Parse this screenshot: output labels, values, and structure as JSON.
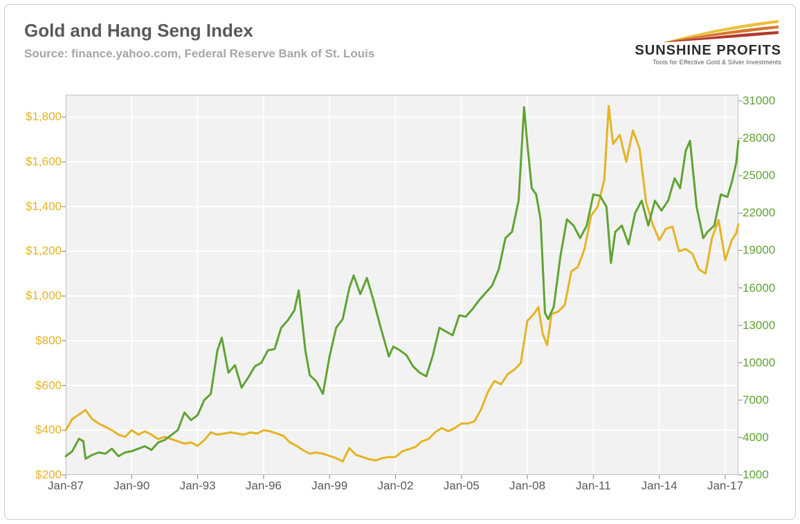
{
  "header": {
    "title": "Gold and Hang Seng Index",
    "subtitle": "Source: finance.yahoo.com, Federal Reserve Bank of St. Louis"
  },
  "logo": {
    "name": "SUNSHINE PROFITS",
    "tagline": "Tools for Effective Gold & Silver Investments",
    "swoosh_colors": [
      "#e8c23a",
      "#d7762c",
      "#b03a2e"
    ]
  },
  "chart": {
    "type": "line",
    "background_color": "#f2f2f2",
    "grid_color": "#ffffff",
    "border_color": "#bfbfbf",
    "x": {
      "start": 1987.0,
      "end": 2017.6,
      "ticks": [
        1987,
        1990,
        1993,
        1996,
        1999,
        2002,
        2005,
        2008,
        2011,
        2014,
        2017
      ],
      "tick_labels": [
        "Jan-87",
        "Jan-90",
        "Jan-93",
        "Jan-96",
        "Jan-99",
        "Jan-02",
        "Jan-05",
        "Jan-08",
        "Jan-11",
        "Jan-14",
        "Jan-17"
      ],
      "label_color": "#595959",
      "fontsize": 17
    },
    "y_left": {
      "min": 200,
      "max": 1900,
      "ticks": [
        200,
        400,
        600,
        800,
        1000,
        1200,
        1400,
        1600,
        1800
      ],
      "tick_labels": [
        "$200",
        "$400",
        "$600",
        "$800",
        "$1,000",
        "$1,200",
        "$1,400",
        "$1,600",
        "$1,800"
      ],
      "color": "#e6b323",
      "fontsize": 17
    },
    "y_right": {
      "min": 1000,
      "max": 31500,
      "ticks": [
        1000,
        4000,
        7000,
        10000,
        13000,
        16000,
        19000,
        22000,
        25000,
        28000,
        31000
      ],
      "tick_labels": [
        "1000",
        "4000",
        "7000",
        "10000",
        "13000",
        "16000",
        "19000",
        "22000",
        "25000",
        "28000",
        "31000"
      ],
      "color": "#5fa332",
      "fontsize": 17
    },
    "series": [
      {
        "name": "Gold",
        "axis": "left",
        "color": "#e6b323",
        "line_width": 3,
        "data": [
          [
            1987.0,
            400
          ],
          [
            1987.3,
            450
          ],
          [
            1987.6,
            470
          ],
          [
            1987.9,
            490
          ],
          [
            1988.2,
            450
          ],
          [
            1988.5,
            430
          ],
          [
            1988.8,
            415
          ],
          [
            1989.1,
            400
          ],
          [
            1989.4,
            380
          ],
          [
            1989.7,
            370
          ],
          [
            1990.0,
            400
          ],
          [
            1990.3,
            380
          ],
          [
            1990.6,
            395
          ],
          [
            1990.9,
            380
          ],
          [
            1991.2,
            360
          ],
          [
            1991.5,
            370
          ],
          [
            1991.8,
            360
          ],
          [
            1992.1,
            350
          ],
          [
            1992.4,
            340
          ],
          [
            1992.7,
            345
          ],
          [
            1993.0,
            330
          ],
          [
            1993.3,
            355
          ],
          [
            1993.6,
            390
          ],
          [
            1993.9,
            380
          ],
          [
            1994.2,
            385
          ],
          [
            1994.5,
            390
          ],
          [
            1994.8,
            385
          ],
          [
            1995.1,
            380
          ],
          [
            1995.4,
            390
          ],
          [
            1995.7,
            385
          ],
          [
            1996.0,
            400
          ],
          [
            1996.3,
            395
          ],
          [
            1996.6,
            385
          ],
          [
            1996.9,
            375
          ],
          [
            1997.2,
            345
          ],
          [
            1997.5,
            330
          ],
          [
            1997.8,
            310
          ],
          [
            1998.1,
            295
          ],
          [
            1998.4,
            300
          ],
          [
            1998.7,
            295
          ],
          [
            1999.0,
            285
          ],
          [
            1999.3,
            275
          ],
          [
            1999.6,
            260
          ],
          [
            1999.9,
            320
          ],
          [
            2000.2,
            290
          ],
          [
            2000.5,
            280
          ],
          [
            2000.8,
            270
          ],
          [
            2001.1,
            265
          ],
          [
            2001.4,
            275
          ],
          [
            2001.7,
            280
          ],
          [
            2002.0,
            280
          ],
          [
            2002.3,
            305
          ],
          [
            2002.6,
            315
          ],
          [
            2002.9,
            325
          ],
          [
            2003.2,
            350
          ],
          [
            2003.5,
            360
          ],
          [
            2003.8,
            390
          ],
          [
            2004.1,
            410
          ],
          [
            2004.4,
            395
          ],
          [
            2004.7,
            410
          ],
          [
            2005.0,
            430
          ],
          [
            2005.3,
            430
          ],
          [
            2005.6,
            440
          ],
          [
            2005.9,
            495
          ],
          [
            2006.2,
            570
          ],
          [
            2006.5,
            620
          ],
          [
            2006.8,
            605
          ],
          [
            2007.1,
            650
          ],
          [
            2007.4,
            670
          ],
          [
            2007.7,
            700
          ],
          [
            2008.0,
            890
          ],
          [
            2008.3,
            920
          ],
          [
            2008.5,
            950
          ],
          [
            2008.7,
            830
          ],
          [
            2008.9,
            780
          ],
          [
            2009.1,
            920
          ],
          [
            2009.4,
            930
          ],
          [
            2009.7,
            960
          ],
          [
            2010.0,
            1110
          ],
          [
            2010.3,
            1130
          ],
          [
            2010.6,
            1210
          ],
          [
            2010.9,
            1360
          ],
          [
            2011.2,
            1400
          ],
          [
            2011.5,
            1520
          ],
          [
            2011.7,
            1850
          ],
          [
            2011.9,
            1680
          ],
          [
            2012.2,
            1720
          ],
          [
            2012.5,
            1600
          ],
          [
            2012.8,
            1740
          ],
          [
            2013.1,
            1660
          ],
          [
            2013.4,
            1420
          ],
          [
            2013.7,
            1320
          ],
          [
            2014.0,
            1250
          ],
          [
            2014.3,
            1300
          ],
          [
            2014.6,
            1310
          ],
          [
            2014.9,
            1200
          ],
          [
            2015.2,
            1210
          ],
          [
            2015.5,
            1190
          ],
          [
            2015.8,
            1120
          ],
          [
            2016.1,
            1100
          ],
          [
            2016.4,
            1260
          ],
          [
            2016.7,
            1340
          ],
          [
            2017.0,
            1160
          ],
          [
            2017.3,
            1250
          ],
          [
            2017.5,
            1280
          ],
          [
            2017.6,
            1320
          ]
        ]
      },
      {
        "name": "Hang Seng",
        "axis": "right",
        "color": "#5fa332",
        "line_width": 3,
        "data": [
          [
            1987.0,
            2500
          ],
          [
            1987.3,
            2900
          ],
          [
            1987.6,
            3900
          ],
          [
            1987.8,
            3700
          ],
          [
            1987.9,
            2300
          ],
          [
            1988.2,
            2600
          ],
          [
            1988.5,
            2800
          ],
          [
            1988.8,
            2700
          ],
          [
            1989.1,
            3100
          ],
          [
            1989.4,
            2500
          ],
          [
            1989.7,
            2800
          ],
          [
            1990.0,
            2900
          ],
          [
            1990.3,
            3100
          ],
          [
            1990.6,
            3300
          ],
          [
            1990.9,
            3000
          ],
          [
            1991.2,
            3600
          ],
          [
            1991.5,
            3800
          ],
          [
            1991.8,
            4200
          ],
          [
            1992.1,
            4600
          ],
          [
            1992.4,
            6000
          ],
          [
            1992.7,
            5400
          ],
          [
            1993.0,
            5800
          ],
          [
            1993.3,
            7000
          ],
          [
            1993.6,
            7500
          ],
          [
            1993.9,
            11000
          ],
          [
            1994.1,
            12000
          ],
          [
            1994.4,
            9200
          ],
          [
            1994.7,
            9800
          ],
          [
            1995.0,
            8000
          ],
          [
            1995.3,
            8800
          ],
          [
            1995.6,
            9700
          ],
          [
            1995.9,
            10000
          ],
          [
            1996.2,
            11000
          ],
          [
            1996.5,
            11100
          ],
          [
            1996.8,
            12800
          ],
          [
            1997.1,
            13400
          ],
          [
            1997.4,
            14200
          ],
          [
            1997.6,
            15800
          ],
          [
            1997.9,
            11000
          ],
          [
            1998.1,
            9000
          ],
          [
            1998.4,
            8500
          ],
          [
            1998.7,
            7500
          ],
          [
            1999.0,
            10500
          ],
          [
            1999.3,
            12800
          ],
          [
            1999.6,
            13500
          ],
          [
            1999.9,
            16000
          ],
          [
            2000.1,
            17000
          ],
          [
            2000.4,
            15500
          ],
          [
            2000.7,
            16800
          ],
          [
            2001.0,
            15000
          ],
          [
            2001.3,
            13000
          ],
          [
            2001.7,
            10500
          ],
          [
            2001.9,
            11300
          ],
          [
            2002.2,
            11000
          ],
          [
            2002.5,
            10600
          ],
          [
            2002.8,
            9700
          ],
          [
            2003.1,
            9200
          ],
          [
            2003.4,
            8900
          ],
          [
            2003.7,
            10600
          ],
          [
            2004.0,
            12800
          ],
          [
            2004.3,
            12500
          ],
          [
            2004.6,
            12200
          ],
          [
            2004.9,
            13800
          ],
          [
            2005.2,
            13700
          ],
          [
            2005.5,
            14300
          ],
          [
            2005.8,
            15000
          ],
          [
            2006.1,
            15600
          ],
          [
            2006.4,
            16200
          ],
          [
            2006.7,
            17500
          ],
          [
            2007.0,
            20000
          ],
          [
            2007.3,
            20500
          ],
          [
            2007.6,
            23000
          ],
          [
            2007.85,
            30500
          ],
          [
            2008.0,
            27500
          ],
          [
            2008.2,
            24000
          ],
          [
            2008.4,
            23500
          ],
          [
            2008.6,
            21500
          ],
          [
            2008.8,
            14000
          ],
          [
            2008.95,
            13500
          ],
          [
            2009.2,
            14500
          ],
          [
            2009.5,
            18500
          ],
          [
            2009.8,
            21500
          ],
          [
            2010.1,
            21000
          ],
          [
            2010.4,
            20000
          ],
          [
            2010.7,
            21000
          ],
          [
            2011.0,
            23500
          ],
          [
            2011.3,
            23400
          ],
          [
            2011.6,
            22500
          ],
          [
            2011.8,
            18000
          ],
          [
            2012.0,
            20500
          ],
          [
            2012.3,
            21000
          ],
          [
            2012.6,
            19500
          ],
          [
            2012.9,
            22000
          ],
          [
            2013.2,
            23000
          ],
          [
            2013.5,
            21000
          ],
          [
            2013.8,
            23000
          ],
          [
            2014.1,
            22200
          ],
          [
            2014.4,
            23000
          ],
          [
            2014.7,
            24800
          ],
          [
            2014.95,
            24000
          ],
          [
            2015.2,
            27000
          ],
          [
            2015.4,
            27800
          ],
          [
            2015.7,
            22500
          ],
          [
            2016.0,
            20000
          ],
          [
            2016.2,
            20500
          ],
          [
            2016.5,
            21000
          ],
          [
            2016.8,
            23500
          ],
          [
            2017.1,
            23300
          ],
          [
            2017.3,
            24500
          ],
          [
            2017.5,
            26000
          ],
          [
            2017.6,
            27800
          ]
        ]
      }
    ]
  }
}
